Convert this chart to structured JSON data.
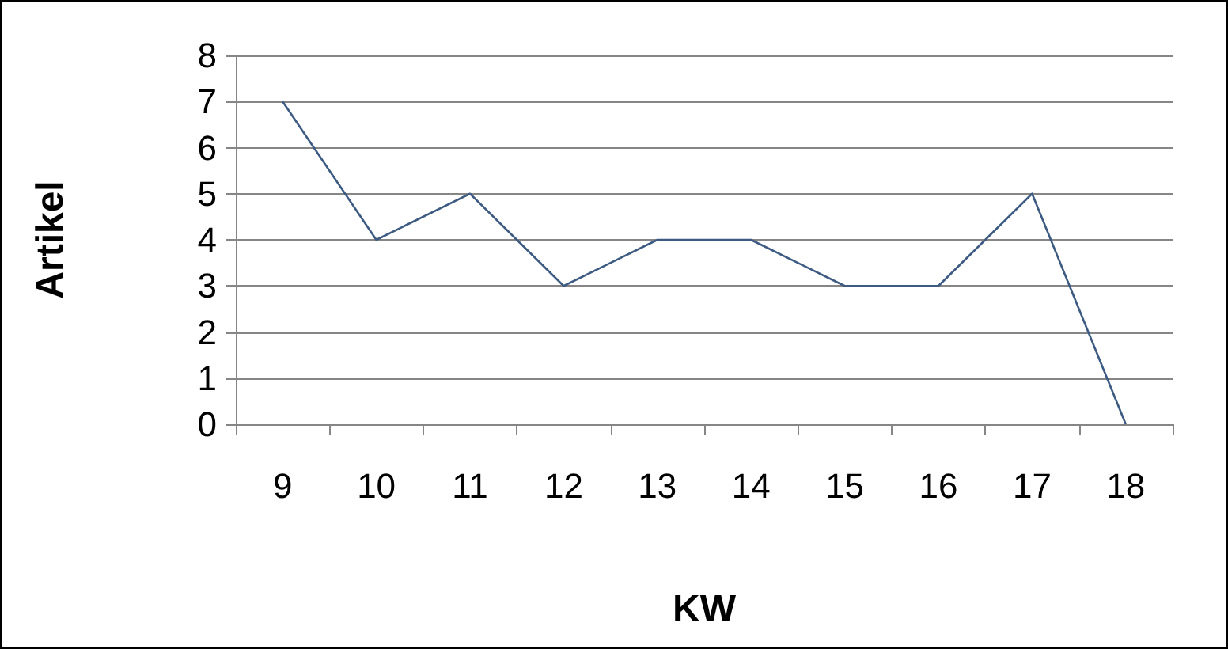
{
  "chart_data": {
    "type": "line",
    "xlabel": "KW",
    "ylabel": "Artikel",
    "categories": [
      "9",
      "10",
      "11",
      "12",
      "13",
      "14",
      "15",
      "16",
      "17",
      "18"
    ],
    "series": [
      {
        "color": "#3c5a82",
        "values": [
          7,
          4,
          5,
          3,
          4,
          4,
          3,
          3,
          5,
          0
        ]
      }
    ],
    "ylim": [
      0,
      8
    ],
    "yticks": [
      0,
      1,
      2,
      3,
      4,
      5,
      6,
      7,
      8
    ],
    "grid": "y",
    "marker": "none",
    "line_style": "solid"
  }
}
